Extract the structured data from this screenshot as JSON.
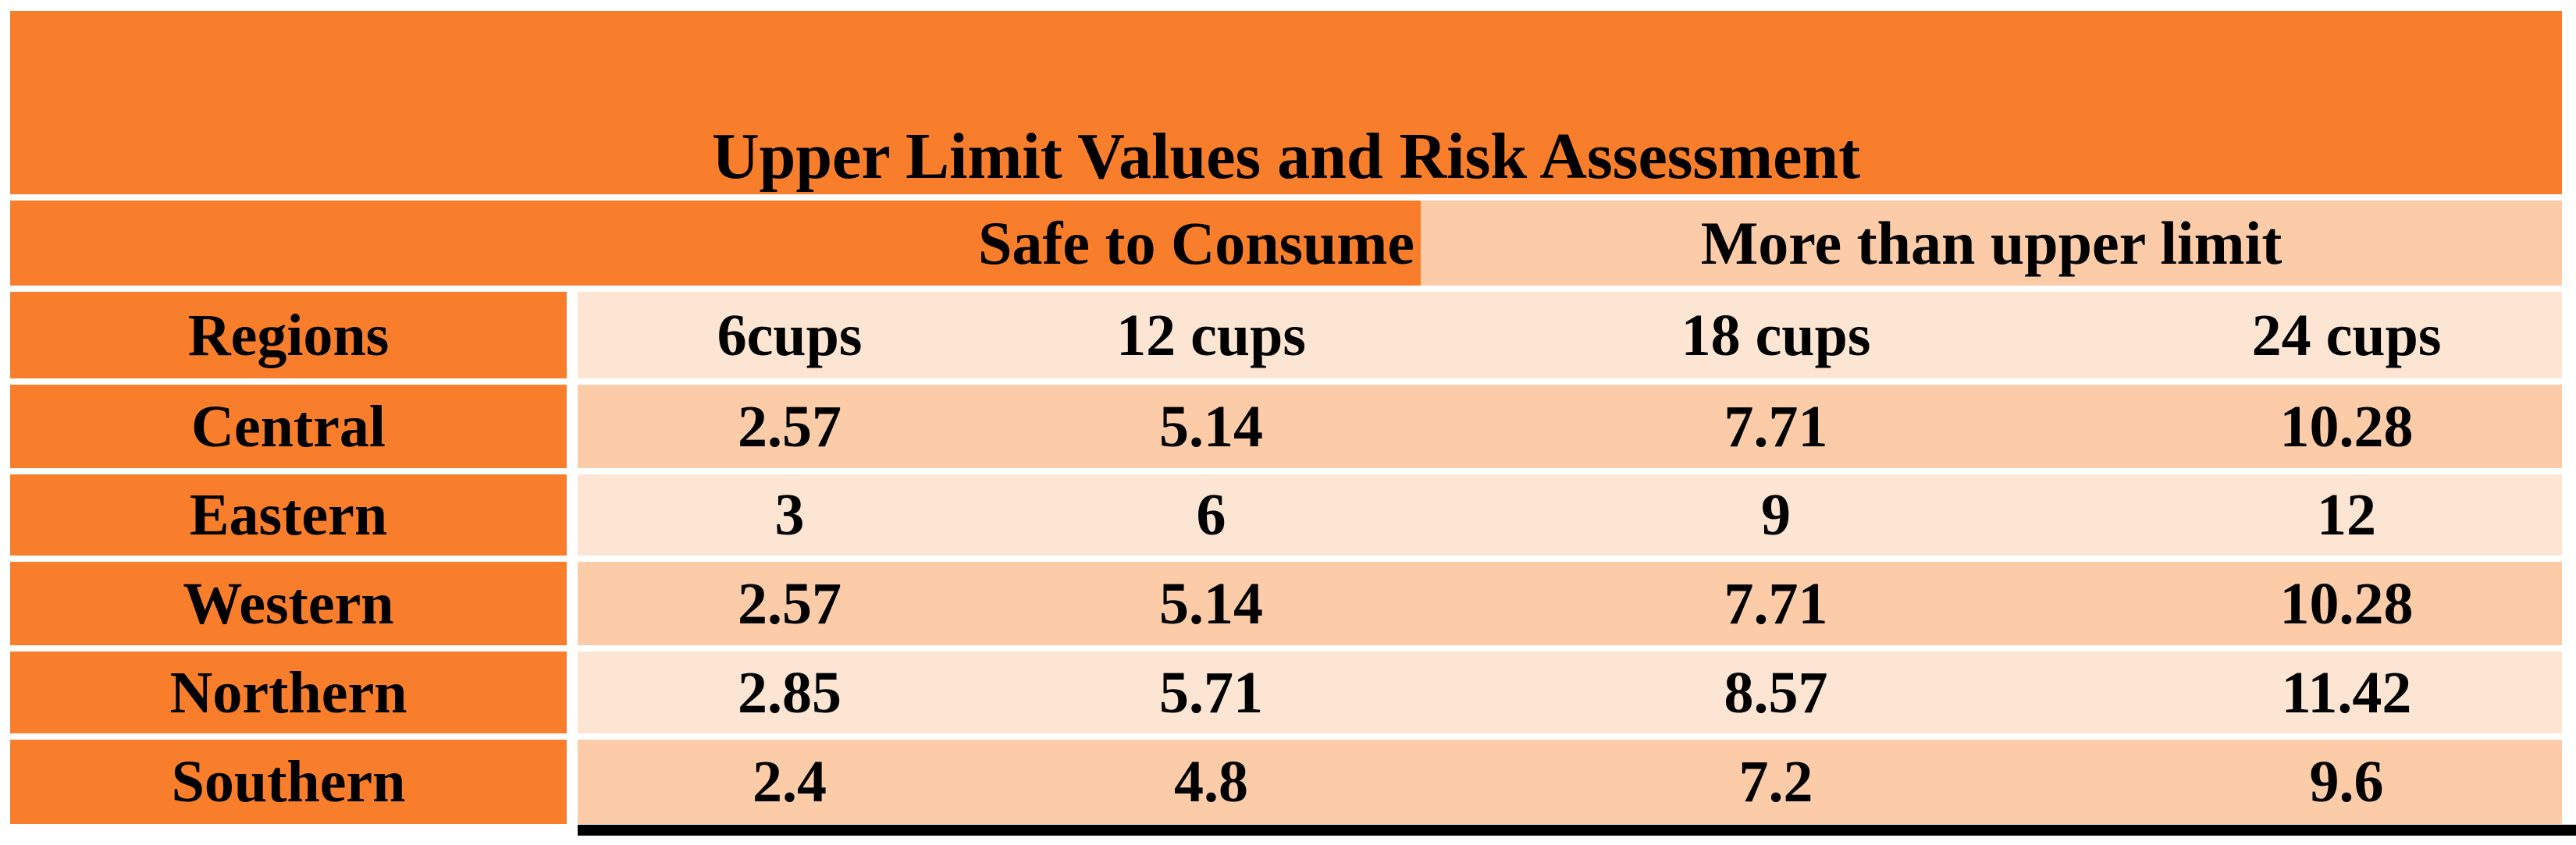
{
  "chart_data": {
    "type": "table",
    "title": "Upper Limit Values and Risk Assessment",
    "column_groups": [
      {
        "label": "Safe to Consume",
        "columns": [
          "6cups",
          "12 cups"
        ]
      },
      {
        "label": "More than upper limit",
        "columns": [
          "18 cups",
          "24 cups"
        ]
      }
    ],
    "row_header": "Regions",
    "columns": [
      "6cups",
      "12 cups",
      "18 cups",
      "24 cups"
    ],
    "rows": [
      {
        "region": "Central",
        "values": [
          "2.57",
          "5.14",
          "7.71",
          "10.28"
        ]
      },
      {
        "region": "Eastern",
        "values": [
          "3",
          "6",
          "9",
          "12"
        ]
      },
      {
        "region": "Western",
        "values": [
          "2.57",
          "5.14",
          "7.71",
          "10.28"
        ]
      },
      {
        "region": "Northern",
        "values": [
          "2.85",
          "5.71",
          "8.57",
          "11.42"
        ]
      },
      {
        "region": "Southern",
        "values": [
          "2.4",
          "4.8",
          "7.2",
          "9.6"
        ]
      }
    ],
    "layout_hints": {
      "grid": "white gridlines between rows; white divider after Regions column; black rule under data columns at bottom",
      "legend_position": "none"
    }
  },
  "colors": {
    "orange": "#F87E2B",
    "peach_medium": "#FCCBA8",
    "peach_light": "#FDE5D3",
    "text": "#000000",
    "gridline": "#FFFFFF",
    "bottom_rule": "#000000"
  }
}
